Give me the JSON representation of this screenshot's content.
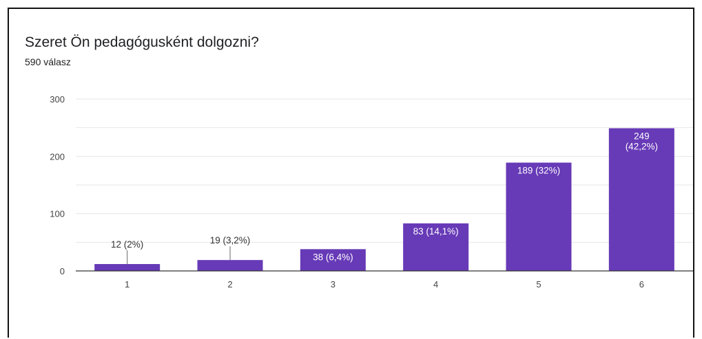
{
  "title": "Szeret Ön pedagógusként dolgozni?",
  "subtitle": "590 válasz",
  "colors": {
    "bar": "#673ab7",
    "grid": "#e6e6e6",
    "axis": "#333333",
    "label_inside": "#ffffff",
    "label_outside": "#333333"
  },
  "chart_data": {
    "type": "bar",
    "categories": [
      "1",
      "2",
      "3",
      "4",
      "5",
      "6"
    ],
    "values": [
      12,
      19,
      38,
      83,
      189,
      249
    ],
    "data_labels": [
      "12 (2%)",
      "19 (3,2%)",
      "38 (6,4%)",
      "83 (14,1%)",
      "189 (32%)",
      "249\n(42,2%)"
    ],
    "ylim": [
      0,
      300
    ],
    "yticks": [
      0,
      100,
      200,
      300
    ],
    "grid": true
  }
}
